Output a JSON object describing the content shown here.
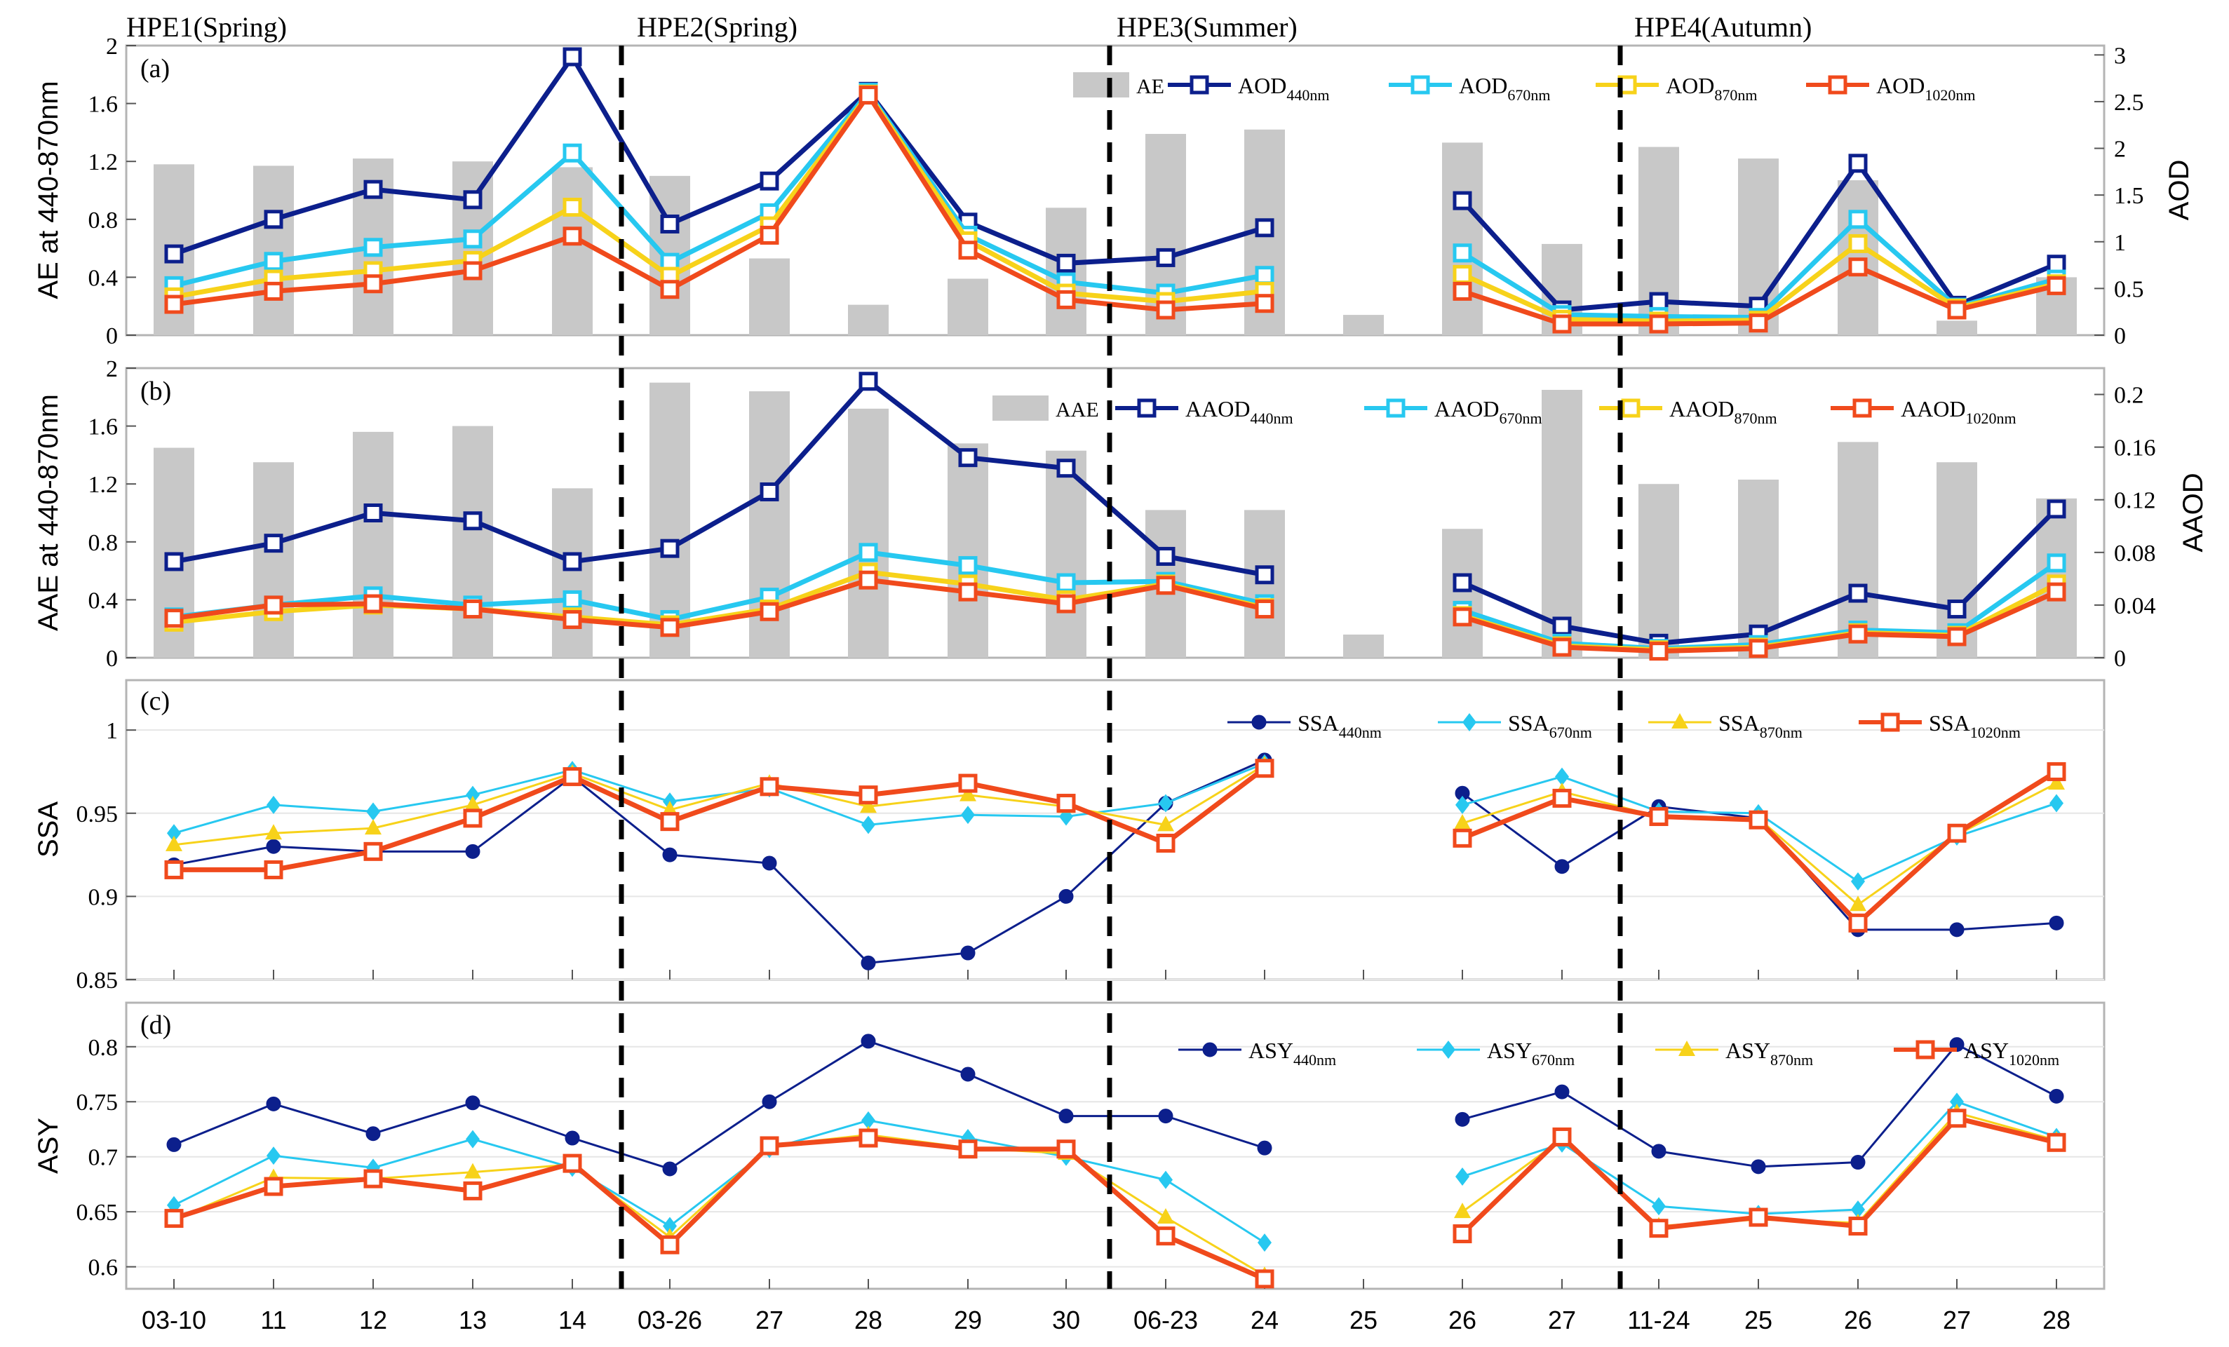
{
  "figure": {
    "period_titles": [
      "HPE1(Spring)",
      "HPE2(Spring)",
      "HPE3(Summer)",
      "HPE4(Autumn)"
    ],
    "x_tick_labels": [
      "03-10",
      "11",
      "12",
      "13",
      "14",
      "03-26",
      "27",
      "28",
      "29",
      "30",
      "06-23",
      "24",
      "25",
      "26",
      "27",
      "11-24",
      "25",
      "26",
      "27",
      "28"
    ]
  },
  "chart_data": [
    {
      "id": "a",
      "panel_label": "(a)",
      "type": "bar+line",
      "ylabel": "AE at 440-870nm",
      "y2label": "AOD",
      "ylim": [
        0,
        2
      ],
      "yticks": [
        0,
        0.4,
        0.8,
        1.2,
        1.6,
        2
      ],
      "ytick_labels": [
        "0",
        "0.4",
        "0.8",
        "1.2",
        "1.6",
        "2"
      ],
      "y2lim": [
        0,
        3.1
      ],
      "y2ticks": [
        0,
        0.5,
        1,
        1.5,
        2,
        2.5,
        3
      ],
      "y2tick_labels": [
        "0",
        "0.5",
        "1",
        "1.5",
        "2",
        "2.5",
        "3"
      ],
      "bars": {
        "name": "AE",
        "color": "#c8c8c8",
        "values": [
          1.18,
          1.17,
          1.22,
          1.2,
          1.16,
          1.1,
          0.53,
          0.21,
          0.39,
          0.88,
          1.39,
          1.42,
          0.14,
          1.33,
          0.63,
          1.3,
          1.22,
          1.07,
          0.1,
          0.4
        ]
      },
      "series": [
        {
          "name": "AOD",
          "sub": "440nm",
          "color": "#0c1f8c",
          "marker": "square",
          "values": [
            0.87,
            1.24,
            1.56,
            1.45,
            2.98,
            1.19,
            1.65,
            2.61,
            1.21,
            0.77,
            0.83,
            1.15,
            null,
            1.44,
            0.27,
            0.36,
            0.31,
            1.84,
            0.32,
            0.76
          ]
        },
        {
          "name": "AOD",
          "sub": "670nm",
          "color": "#27c8f0",
          "marker": "square",
          "values": [
            0.53,
            0.79,
            0.94,
            1.03,
            1.95,
            0.78,
            1.31,
            2.6,
            1.07,
            0.57,
            0.45,
            0.64,
            null,
            0.88,
            0.22,
            0.2,
            0.19,
            1.24,
            0.3,
            0.6
          ]
        },
        {
          "name": "AOD",
          "sub": "870nm",
          "color": "#f7d21a",
          "marker": "square",
          "values": [
            0.41,
            0.6,
            0.69,
            0.8,
            1.37,
            0.63,
            1.17,
            2.58,
            1.01,
            0.45,
            0.36,
            0.47,
            null,
            0.65,
            0.17,
            0.15,
            0.16,
            0.98,
            0.29,
            0.55
          ]
        },
        {
          "name": "AOD",
          "sub": "1020nm",
          "color": "#f04a1c",
          "marker": "square",
          "values": [
            0.33,
            0.47,
            0.55,
            0.69,
            1.06,
            0.49,
            1.07,
            2.57,
            0.91,
            0.38,
            0.27,
            0.34,
            null,
            0.47,
            0.12,
            0.12,
            0.13,
            0.73,
            0.27,
            0.53
          ]
        }
      ],
      "legend_position": "top-right"
    },
    {
      "id": "b",
      "panel_label": "(b)",
      "type": "bar+line",
      "ylabel": "AAE at 440-870nm",
      "y2label": "AAOD",
      "ylim": [
        0,
        2
      ],
      "yticks": [
        0,
        0.4,
        0.8,
        1.2,
        1.6,
        2
      ],
      "ytick_labels": [
        "0",
        "0.4",
        "0.8",
        "1.2",
        "1.6",
        "2"
      ],
      "y2lim": [
        0,
        0.22
      ],
      "y2ticks": [
        0,
        0.04,
        0.08,
        0.12,
        0.16,
        0.2
      ],
      "y2tick_labels": [
        "0",
        "0.04",
        "0.08",
        "0.12",
        "0.16",
        "0.2"
      ],
      "bars": {
        "name": "AAE",
        "color": "#c8c8c8",
        "values": [
          1.45,
          1.35,
          1.56,
          1.6,
          1.17,
          1.9,
          1.84,
          1.72,
          1.48,
          1.43,
          1.02,
          1.02,
          0.16,
          0.89,
          1.85,
          1.2,
          1.23,
          1.49,
          1.35,
          1.1
        ]
      },
      "series": [
        {
          "name": "AAOD",
          "sub": "440nm",
          "color": "#0c1f8c",
          "marker": "square",
          "values": [
            0.073,
            0.087,
            0.11,
            0.104,
            0.073,
            0.083,
            0.126,
            0.21,
            0.152,
            0.144,
            0.077,
            0.063,
            null,
            0.057,
            0.024,
            0.011,
            0.018,
            0.049,
            0.037,
            0.113
          ]
        },
        {
          "name": "AAOD",
          "sub": "670nm",
          "color": "#27c8f0",
          "marker": "square",
          "values": [
            0.031,
            0.04,
            0.047,
            0.04,
            0.044,
            0.029,
            0.046,
            0.08,
            0.07,
            0.057,
            0.058,
            0.041,
            null,
            0.036,
            0.011,
            0.007,
            0.01,
            0.021,
            0.019,
            0.072
          ]
        },
        {
          "name": "AAOD",
          "sub": "870nm",
          "color": "#f7d21a",
          "marker": "square",
          "values": [
            0.027,
            0.035,
            0.04,
            0.037,
            0.031,
            0.025,
            0.037,
            0.065,
            0.056,
            0.044,
            0.056,
            0.038,
            null,
            0.032,
            0.009,
            0.006,
            0.008,
            0.019,
            0.017,
            0.056
          ]
        },
        {
          "name": "AAOD",
          "sub": "1020nm",
          "color": "#f04a1c",
          "marker": "square",
          "values": [
            0.03,
            0.04,
            0.041,
            0.037,
            0.029,
            0.023,
            0.035,
            0.059,
            0.05,
            0.041,
            0.055,
            0.037,
            null,
            0.031,
            0.008,
            0.005,
            0.007,
            0.018,
            0.016,
            0.05
          ]
        }
      ],
      "legend_position": "top-right"
    },
    {
      "id": "c",
      "panel_label": "(c)",
      "type": "line",
      "ylabel": "SSA",
      "ylim": [
        0.85,
        1.03
      ],
      "yticks": [
        0.85,
        0.9,
        0.95,
        1
      ],
      "ytick_labels": [
        "0.85",
        "0.9",
        "0.95",
        "1"
      ],
      "series": [
        {
          "name": "SSA",
          "sub": "440nm",
          "color": "#0c1f8c",
          "marker": "circle",
          "values": [
            0.919,
            0.93,
            0.927,
            0.927,
            0.972,
            0.925,
            0.92,
            0.86,
            0.866,
            0.9,
            0.956,
            0.982,
            null,
            0.962,
            0.918,
            0.954,
            0.947,
            0.88,
            0.88,
            0.884
          ]
        },
        {
          "name": "SSA",
          "sub": "670nm",
          "color": "#27c8f0",
          "marker": "diamond",
          "values": [
            0.938,
            0.955,
            0.951,
            0.961,
            0.976,
            0.957,
            0.965,
            0.943,
            0.949,
            0.948,
            0.956,
            0.98,
            null,
            0.955,
            0.972,
            0.951,
            0.95,
            0.909,
            0.936,
            0.956
          ]
        },
        {
          "name": "SSA",
          "sub": "870nm",
          "color": "#f7d21a",
          "marker": "triangle",
          "values": [
            0.931,
            0.938,
            0.941,
            0.955,
            0.974,
            0.952,
            0.968,
            0.954,
            0.961,
            0.954,
            0.943,
            0.979,
            null,
            0.944,
            0.963,
            0.948,
            0.947,
            0.895,
            0.937,
            0.968
          ]
        },
        {
          "name": "SSA",
          "sub": "1020nm",
          "color": "#f04a1c",
          "marker": "square",
          "values": [
            0.916,
            0.916,
            0.927,
            0.947,
            0.972,
            0.945,
            0.966,
            0.961,
            0.968,
            0.956,
            0.932,
            0.977,
            null,
            0.935,
            0.959,
            0.948,
            0.946,
            0.884,
            0.938,
            0.975
          ]
        }
      ],
      "legend_position": "top-right"
    },
    {
      "id": "d",
      "panel_label": "(d)",
      "type": "line",
      "ylabel": "ASY",
      "ylim": [
        0.58,
        0.84
      ],
      "yticks": [
        0.6,
        0.65,
        0.7,
        0.75,
        0.8
      ],
      "ytick_labels": [
        "0.6",
        "0.65",
        "0.7",
        "0.75",
        "0.8"
      ],
      "series": [
        {
          "name": "ASY",
          "sub": "440nm",
          "color": "#0c1f8c",
          "marker": "circle",
          "values": [
            0.711,
            0.748,
            0.721,
            0.749,
            0.717,
            0.689,
            0.75,
            0.805,
            0.775,
            0.737,
            0.737,
            0.708,
            null,
            0.734,
            0.759,
            0.705,
            0.691,
            0.695,
            0.802,
            0.755
          ]
        },
        {
          "name": "ASY",
          "sub": "670nm",
          "color": "#27c8f0",
          "marker": "diamond",
          "values": [
            0.656,
            0.701,
            0.69,
            0.716,
            0.69,
            0.637,
            0.707,
            0.733,
            0.717,
            0.7,
            0.679,
            0.622,
            null,
            0.682,
            0.712,
            0.655,
            0.648,
            0.652,
            0.75,
            0.718
          ]
        },
        {
          "name": "ASY",
          "sub": "870nm",
          "color": "#f7d21a",
          "marker": "triangle",
          "values": [
            0.643,
            0.681,
            0.68,
            0.686,
            0.693,
            0.627,
            0.71,
            0.72,
            0.708,
            0.703,
            0.645,
            0.592,
            null,
            0.65,
            0.716,
            0.637,
            0.643,
            0.64,
            0.74,
            0.715
          ]
        },
        {
          "name": "ASY",
          "sub": "1020nm",
          "color": "#f04a1c",
          "marker": "square",
          "values": [
            0.644,
            0.673,
            0.68,
            0.669,
            0.694,
            0.62,
            0.71,
            0.717,
            0.707,
            0.707,
            0.628,
            0.589,
            null,
            0.63,
            0.718,
            0.635,
            0.645,
            0.637,
            0.735,
            0.713
          ]
        }
      ],
      "legend_position": "top-right"
    }
  ]
}
